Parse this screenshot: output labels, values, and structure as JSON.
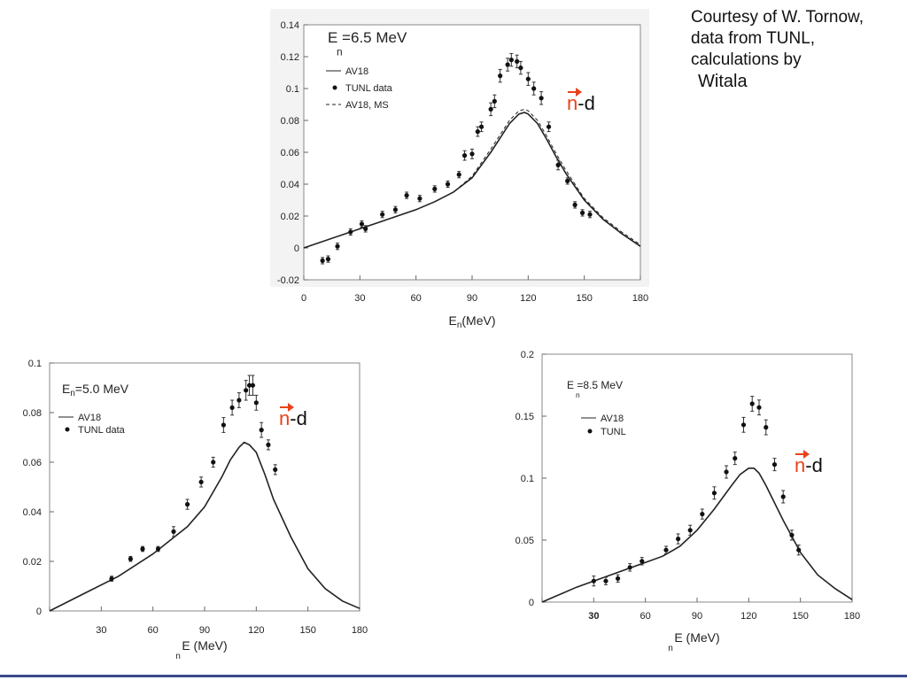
{
  "credit": {
    "line1": "Courtesy of W. Tornow,",
    "line2": "data from TUNL,",
    "line3": "calculations by",
    "line4": "Witala"
  },
  "chart_data": [
    {
      "type": "line",
      "title": "E =6.5 MeV",
      "title_sub": "n",
      "xlabel": "En(MeV)",
      "xlabel_main": "E",
      "xlabel_sub": "n",
      "xlabel_tail": "(MeV)",
      "ylabel": "",
      "xlim": [
        0,
        180
      ],
      "ylim": [
        -0.02,
        0.14
      ],
      "xticks": [
        0,
        30,
        60,
        90,
        120,
        150,
        180
      ],
      "xtick_labels": [
        "0",
        "30",
        "60",
        "90",
        "120",
        "150",
        "180"
      ],
      "yticks": [
        -0.02,
        0,
        0.02,
        0.04,
        0.06,
        0.08,
        0.1,
        0.12,
        0.14
      ],
      "ytick_labels": [
        "-0.02",
        "0",
        "0.02",
        "0.04",
        "0.06",
        "0.08",
        "0.1",
        "0.12",
        "0.14"
      ],
      "legend_position": "top-left",
      "legend": [
        "AV18",
        "TUNL data",
        "AV18, MS"
      ],
      "reaction_label": {
        "n": "n",
        "d": "-d"
      },
      "series": [
        {
          "name": "AV18",
          "style": "solid",
          "x": [
            0,
            20,
            40,
            60,
            70,
            80,
            90,
            100,
            105,
            110,
            115,
            118,
            120,
            125,
            130,
            135,
            140,
            150,
            160,
            170,
            180
          ],
          "y": [
            0.0,
            0.008,
            0.016,
            0.024,
            0.029,
            0.035,
            0.044,
            0.06,
            0.069,
            0.078,
            0.084,
            0.085,
            0.084,
            0.078,
            0.068,
            0.057,
            0.047,
            0.03,
            0.018,
            0.009,
            0.001
          ]
        },
        {
          "name": "AV18, MS",
          "style": "dashed",
          "x": [
            0,
            20,
            40,
            60,
            70,
            80,
            90,
            100,
            105,
            110,
            115,
            118,
            120,
            125,
            130,
            135,
            140,
            150,
            160,
            170,
            180
          ],
          "y": [
            0.0,
            0.008,
            0.016,
            0.024,
            0.029,
            0.035,
            0.045,
            0.062,
            0.071,
            0.08,
            0.086,
            0.087,
            0.086,
            0.08,
            0.07,
            0.059,
            0.049,
            0.031,
            0.019,
            0.01,
            0.002
          ]
        },
        {
          "name": "TUNL data",
          "style": "points",
          "x": [
            10,
            13,
            18,
            25,
            31,
            33,
            42,
            49,
            55,
            62,
            70,
            77,
            83,
            86,
            90,
            93,
            95,
            100,
            102,
            105,
            109,
            111,
            114,
            116,
            120,
            123,
            127,
            131,
            136,
            141,
            145,
            149,
            153
          ],
          "y": [
            -0.008,
            -0.007,
            0.001,
            0.01,
            0.015,
            0.012,
            0.021,
            0.024,
            0.033,
            0.031,
            0.037,
            0.04,
            0.046,
            0.058,
            0.059,
            0.073,
            0.076,
            0.087,
            0.092,
            0.108,
            0.115,
            0.118,
            0.117,
            0.113,
            0.106,
            0.1,
            0.094,
            0.076,
            0.052,
            0.042,
            0.027,
            0.022,
            0.021
          ],
          "err": [
            0.002,
            0.002,
            0.002,
            0.002,
            0.002,
            0.002,
            0.002,
            0.002,
            0.002,
            0.002,
            0.002,
            0.002,
            0.002,
            0.003,
            0.003,
            0.003,
            0.003,
            0.004,
            0.004,
            0.004,
            0.004,
            0.004,
            0.004,
            0.004,
            0.004,
            0.004,
            0.004,
            0.003,
            0.003,
            0.002,
            0.002,
            0.002,
            0.002
          ]
        }
      ]
    },
    {
      "type": "line",
      "title": "E",
      "title_sub": "n",
      "title_tail": "=5.0 MeV",
      "xlabel": "E (MeV) n",
      "xlabel_main": "E (MeV)",
      "xlabel_sub": "n",
      "ylabel": "",
      "xlim": [
        0,
        180
      ],
      "ylim": [
        0,
        0.1
      ],
      "xticks": [
        0,
        30,
        60,
        90,
        120,
        150,
        180
      ],
      "xtick_labels": [
        "",
        "30",
        "60",
        "90",
        "120",
        "150",
        "180"
      ],
      "yticks": [
        0,
        0.02,
        0.04,
        0.06,
        0.08,
        0.1
      ],
      "ytick_labels": [
        "0",
        "0.02",
        "0.04",
        "0.06",
        "0.08",
        "0.1"
      ],
      "legend_position": "top-left",
      "legend": [
        "AV18",
        "TUNL data"
      ],
      "reaction_label": {
        "n": "n",
        "d": "-d"
      },
      "series": [
        {
          "name": "AV18",
          "style": "solid",
          "x": [
            0,
            20,
            40,
            60,
            80,
            90,
            100,
            105,
            110,
            113,
            116,
            120,
            125,
            130,
            140,
            150,
            160,
            170,
            180
          ],
          "y": [
            0.0,
            0.007,
            0.014,
            0.023,
            0.034,
            0.042,
            0.054,
            0.061,
            0.066,
            0.068,
            0.067,
            0.064,
            0.055,
            0.045,
            0.03,
            0.017,
            0.009,
            0.004,
            0.001
          ]
        },
        {
          "name": "TUNL data",
          "style": "points",
          "x": [
            36,
            47,
            54,
            63,
            72,
            80,
            88,
            95,
            101,
            106,
            110,
            114,
            116,
            118,
            120,
            123,
            127,
            131
          ],
          "y": [
            0.013,
            0.021,
            0.025,
            0.025,
            0.032,
            0.043,
            0.052,
            0.06,
            0.075,
            0.082,
            0.085,
            0.089,
            0.091,
            0.091,
            0.084,
            0.073,
            0.067,
            0.057
          ],
          "err": [
            0.001,
            0.001,
            0.001,
            0.001,
            0.002,
            0.002,
            0.002,
            0.002,
            0.003,
            0.003,
            0.003,
            0.004,
            0.004,
            0.004,
            0.003,
            0.003,
            0.002,
            0.002
          ]
        }
      ]
    },
    {
      "type": "line",
      "title": "E =8.5 MeV",
      "title_sub": "n",
      "xlabel": "E (MeV) n",
      "xlabel_main": "E (MeV)",
      "xlabel_sub": "n",
      "ylabel": "",
      "xlim": [
        0,
        180
      ],
      "ylim": [
        0,
        0.2
      ],
      "xticks": [
        0,
        30,
        60,
        90,
        120,
        150,
        180
      ],
      "xtick_labels": [
        "",
        "30",
        "60",
        "90",
        "120",
        "150",
        "180"
      ],
      "yticks": [
        0,
        0.05,
        0.1,
        0.15,
        0.2
      ],
      "ytick_labels": [
        "0",
        "0.05",
        "0.1",
        "0.15",
        "0.2"
      ],
      "legend_position": "top-left",
      "legend": [
        "AV18",
        "TUNL"
      ],
      "reaction_label": {
        "n": "n",
        "d": "-d"
      },
      "series": [
        {
          "name": "AV18",
          "style": "solid",
          "x": [
            0,
            20,
            40,
            60,
            70,
            80,
            90,
            100,
            110,
            115,
            120,
            123,
            126,
            130,
            140,
            150,
            160,
            170,
            180
          ],
          "y": [
            0.0,
            0.012,
            0.022,
            0.032,
            0.037,
            0.045,
            0.058,
            0.075,
            0.094,
            0.103,
            0.108,
            0.108,
            0.104,
            0.094,
            0.066,
            0.04,
            0.022,
            0.011,
            0.002
          ]
        },
        {
          "name": "TUNL",
          "style": "points",
          "x": [
            30,
            37,
            44,
            51,
            58,
            72,
            79,
            86,
            93,
            100,
            107,
            112,
            117,
            122,
            126,
            130,
            135,
            140,
            145,
            149
          ],
          "y": [
            0.017,
            0.017,
            0.019,
            0.028,
            0.033,
            0.042,
            0.051,
            0.058,
            0.071,
            0.088,
            0.105,
            0.116,
            0.143,
            0.16,
            0.157,
            0.141,
            0.111,
            0.085,
            0.054,
            0.042
          ],
          "err": [
            0.004,
            0.003,
            0.003,
            0.003,
            0.003,
            0.003,
            0.004,
            0.004,
            0.004,
            0.005,
            0.005,
            0.005,
            0.006,
            0.006,
            0.006,
            0.006,
            0.005,
            0.005,
            0.004,
            0.004
          ]
        }
      ]
    }
  ]
}
